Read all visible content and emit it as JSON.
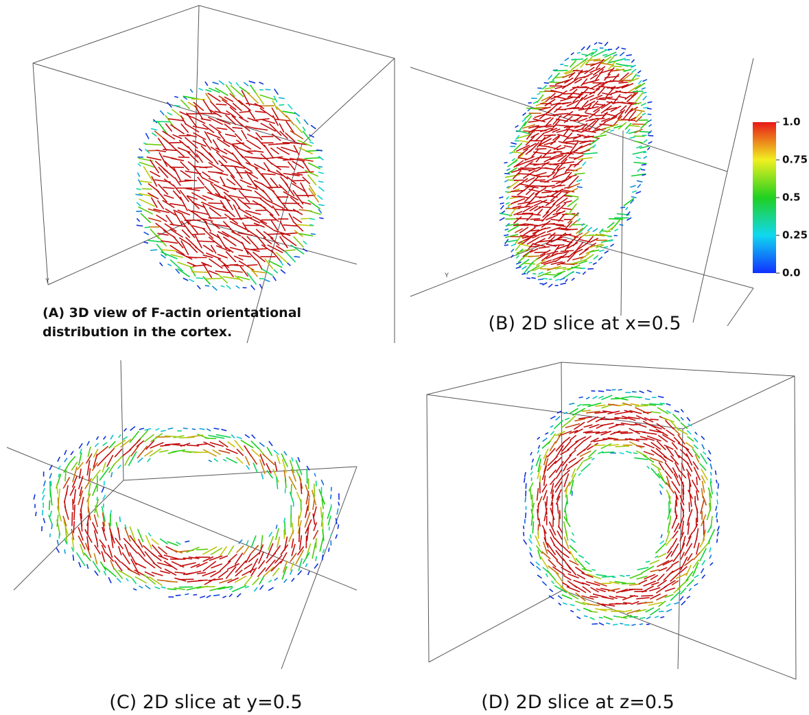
{
  "panels": [
    {
      "caption": [
        "(A) 3D view of F-actin orientational",
        "distribution in the cortex."
      ],
      "axis_label": "Y"
    },
    {
      "caption": [
        "(B) 2D slice at x=0.5"
      ],
      "axis_label": "Y"
    },
    {
      "caption": [
        "(C) 2D slice at y=0.5"
      ]
    },
    {
      "caption": [
        "(D) 2D slice at z=0.5"
      ]
    }
  ],
  "colorbar": {
    "ticks": [
      {
        "value": 0,
        "label": "0.0"
      },
      0.25,
      0.5,
      0.75,
      {
        "value": 1,
        "label": "1.0"
      }
    ]
  }
}
